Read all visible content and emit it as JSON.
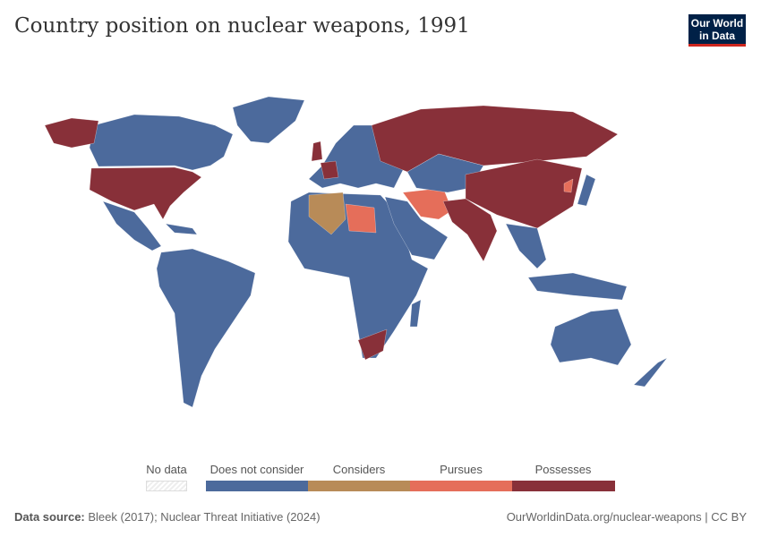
{
  "title": "Country position on nuclear weapons, 1991",
  "logo": {
    "line1": "Our World",
    "line2": "in Data"
  },
  "legend": {
    "no_data": {
      "label": "No data",
      "color": "#f2f2f2"
    },
    "categories": [
      {
        "key": "none",
        "label": "Does not consider",
        "color": "#4c6a9c"
      },
      {
        "key": "considers",
        "label": "Considers",
        "color": "#b88b58"
      },
      {
        "key": "pursues",
        "label": "Pursues",
        "color": "#e56e5a"
      },
      {
        "key": "possesses",
        "label": "Possesses",
        "color": "#883039"
      }
    ]
  },
  "footer": {
    "source_label": "Data source:",
    "source_text": "Bleek (2017); Nuclear Threat Initiative (2024)",
    "link": "OurWorldinData.org/nuclear-weapons | CC BY"
  }
}
